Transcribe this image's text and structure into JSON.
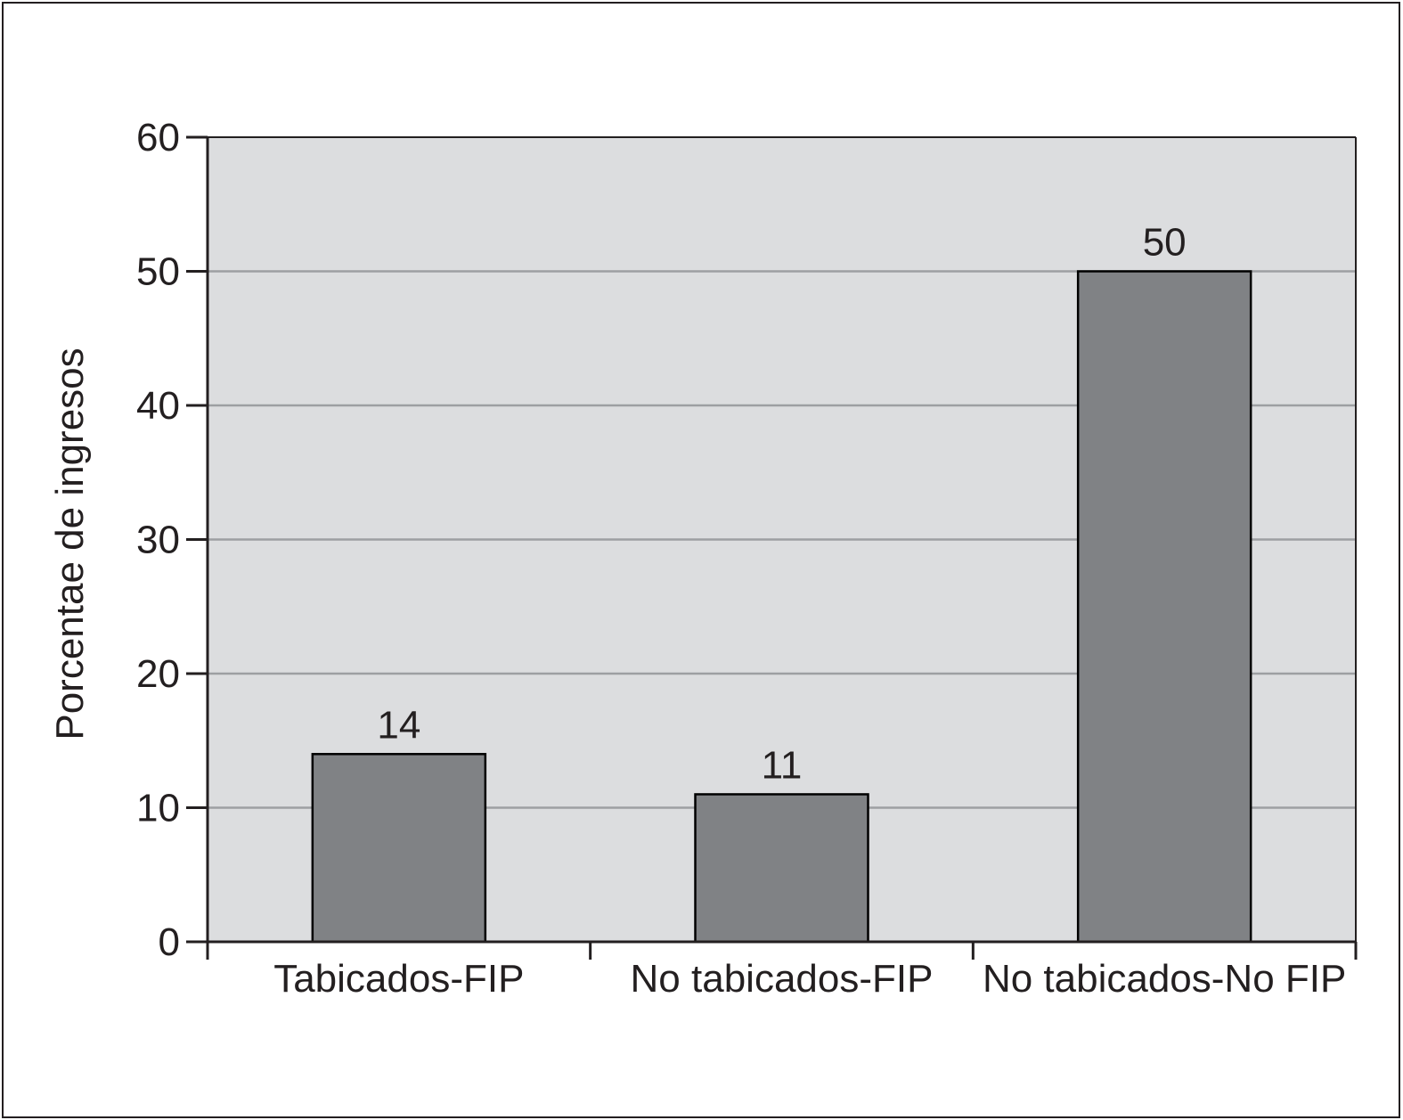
{
  "chart_data": {
    "type": "bar",
    "title": "",
    "xlabel": "",
    "ylabel": "Porcentae de ingresos",
    "categories": [
      "Tabicados-FIP",
      "No tabicados-FIP",
      "No tabicados-No FIP"
    ],
    "values": [
      14,
      11,
      50
    ],
    "value_labels": [
      "14",
      "11",
      "50"
    ],
    "ylim": [
      0,
      60
    ],
    "yticks": [
      0,
      10,
      20,
      30,
      40,
      50,
      60
    ],
    "ytick_labels": [
      "0",
      "10",
      "20",
      "30",
      "40",
      "50",
      "60"
    ],
    "grid": true,
    "legend": "none",
    "colors": {
      "plot_background": "#dcdddf",
      "bar_fill": "#808285",
      "bar_stroke": "#000000",
      "gridline": "#9d9fa2",
      "axis": "#231f20",
      "text": "#231f20"
    }
  }
}
